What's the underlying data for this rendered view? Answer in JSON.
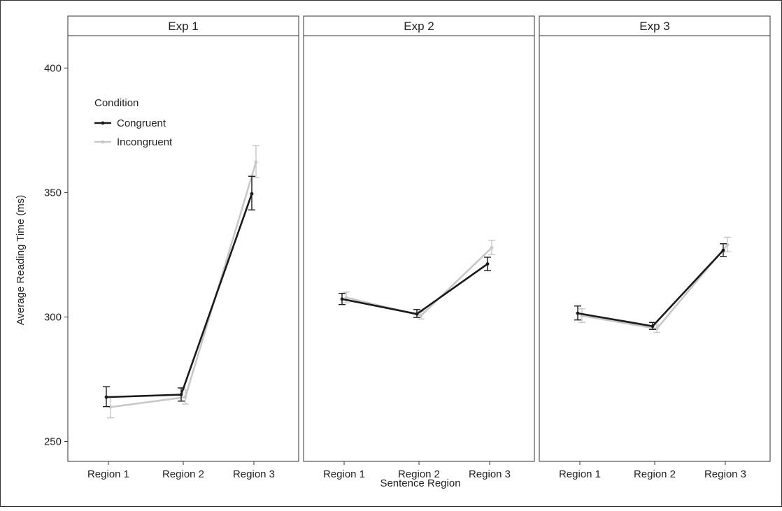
{
  "chart_data": {
    "type": "line",
    "xlabel": "Sentence Region",
    "ylabel": "Average Reading Time (ms)",
    "categories": [
      "Region 1",
      "Region 2",
      "Region 3"
    ],
    "ylim": [
      242,
      413
    ],
    "yticks": [
      250,
      300,
      350,
      400
    ],
    "grid": false,
    "legend": {
      "title": "Condition",
      "placement": "top-left inside first panel",
      "entries": [
        "Congruent",
        "Incongruent"
      ]
    },
    "series_colors": {
      "Congruent": "#1a1a1a",
      "Incongruent": "#c8c8c8"
    },
    "panels": [
      {
        "title": "Exp 1",
        "series": [
          {
            "name": "Congruent",
            "values": [
              267.8,
              268.8,
              349.5
            ],
            "err_low": [
              264.0,
              266.2,
              343.0
            ],
            "err_high": [
              272.0,
              271.5,
              356.5
            ]
          },
          {
            "name": "Incongruent",
            "values": [
              263.8,
              267.8,
              362.2
            ],
            "err_low": [
              259.5,
              265.0,
              356.0
            ],
            "err_high": [
              268.0,
              270.8,
              368.8
            ]
          }
        ]
      },
      {
        "title": "Exp 2",
        "series": [
          {
            "name": "Congruent",
            "values": [
              307.2,
              301.2,
              321.3
            ],
            "err_low": [
              305.0,
              299.8,
              318.6
            ],
            "err_high": [
              309.5,
              303.0,
              324.0
            ]
          },
          {
            "name": "Incongruent",
            "values": [
              307.8,
              300.6,
              327.8
            ],
            "err_low": [
              305.7,
              299.2,
              325.0
            ],
            "err_high": [
              310.0,
              302.3,
              330.8
            ]
          }
        ]
      },
      {
        "title": "Exp 3",
        "series": [
          {
            "name": "Congruent",
            "values": [
              301.5,
              296.3,
              326.8
            ],
            "err_low": [
              298.8,
              295.0,
              324.3
            ],
            "err_high": [
              304.4,
              297.8,
              329.4
            ]
          },
          {
            "name": "Incongruent",
            "values": [
              300.5,
              295.3,
              329.0
            ],
            "err_low": [
              297.8,
              293.8,
              326.2
            ],
            "err_high": [
              303.3,
              296.8,
              332.0
            ]
          }
        ]
      }
    ]
  }
}
